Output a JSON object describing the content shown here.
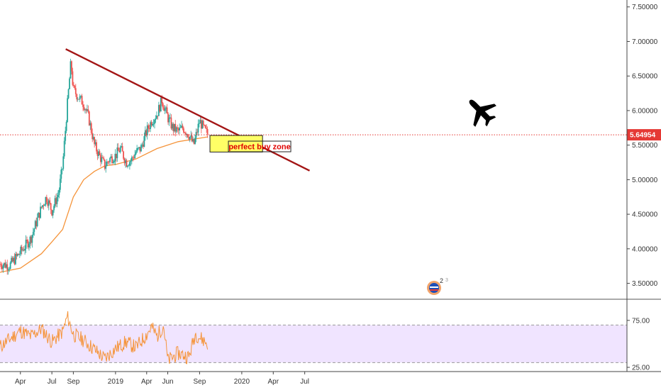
{
  "chart_data": [
    {
      "type": "candlestick",
      "price_axis": {
        "ticks": [
          "7.50000",
          "7.00000",
          "6.50000",
          "6.00000",
          "5.50000",
          "5.00000",
          "4.50000",
          "4.00000",
          "3.50000"
        ],
        "tick_values": [
          7.5,
          7.0,
          6.5,
          6.0,
          5.5,
          5.0,
          4.5,
          4.0,
          3.5
        ],
        "ylim": [
          3.27,
          7.6
        ]
      },
      "time_axis": {
        "labels": [
          "Apr",
          "Jul",
          "Sep",
          "2019",
          "Apr",
          "Jun",
          "Sep",
          "2020",
          "Apr",
          "Jul"
        ],
        "dates": [
          "2018-04",
          "2018-07",
          "2018-09",
          "2019-01",
          "2019-04",
          "2019-06",
          "2019-09",
          "2020-01",
          "2020-04",
          "2020-07"
        ]
      },
      "current_price": {
        "label": "5.64954",
        "value": 5.64954,
        "color": "#e53935"
      },
      "close_series": {
        "x": [
          "2018-02",
          "2018-03",
          "2018-04",
          "2018-05",
          "2018-06",
          "2018-06-15",
          "2018-07",
          "2018-07-20",
          "2018-08",
          "2018-08-15",
          "2018-08-25",
          "2018-09",
          "2018-09-15",
          "2018-10",
          "2018-10-15",
          "2018-11",
          "2018-11-15",
          "2018-12",
          "2018-12-15",
          "2019-01",
          "2019-01-15",
          "2019-02",
          "2019-02-15",
          "2019-03",
          "2019-03-15",
          "2019-04",
          "2019-04-15",
          "2019-05",
          "2019-05-15",
          "2019-06",
          "2019-06-15",
          "2019-07",
          "2019-07-15",
          "2019-08",
          "2019-08-15",
          "2019-09",
          "2019-09-15",
          "2019-09-25"
        ],
        "y": [
          3.78,
          3.76,
          3.95,
          4.15,
          4.6,
          4.75,
          4.55,
          4.8,
          5.2,
          6.1,
          6.7,
          6.3,
          6.2,
          6.1,
          5.9,
          5.5,
          5.35,
          5.2,
          5.3,
          5.35,
          5.45,
          5.25,
          5.28,
          5.4,
          5.45,
          5.7,
          5.85,
          5.95,
          6.15,
          5.9,
          5.75,
          5.7,
          5.75,
          5.65,
          5.5,
          5.85,
          5.72,
          5.65
        ]
      },
      "moving_average": {
        "color": "#f5943a",
        "x": [
          "2018-02",
          "2018-04",
          "2018-06",
          "2018-07",
          "2018-08",
          "2018-09",
          "2018-10",
          "2018-11",
          "2018-12",
          "2019-01",
          "2019-03",
          "2019-05",
          "2019-07",
          "2019-09-25"
        ],
        "y": [
          3.66,
          3.72,
          3.93,
          4.1,
          4.28,
          4.75,
          5.0,
          5.12,
          5.2,
          5.22,
          5.3,
          5.45,
          5.55,
          5.62
        ]
      },
      "trendline": {
        "color": "#a31515",
        "x": [
          "2018-08-10",
          "2020-07-15"
        ],
        "y": [
          6.89,
          5.13
        ]
      },
      "annotation": {
        "text": "perfect buy zone",
        "fill": "#ffff66",
        "price_range": [
          5.4,
          5.64
        ]
      },
      "icons": [
        "airplane-icon",
        "flag-badge-icon"
      ]
    },
    {
      "type": "line",
      "indicator": "RSI",
      "ticks": [
        "75.00",
        "25.00"
      ],
      "tick_values": [
        75,
        25
      ],
      "ylim": [
        22,
        96
      ],
      "band": {
        "upper": 70,
        "lower": 30,
        "fill": "#f0e4ff"
      },
      "color": "#f5943a",
      "x": [
        "2018-02",
        "2018-03",
        "2018-04",
        "2018-05",
        "2018-06",
        "2018-07",
        "2018-08",
        "2018-08-15",
        "2018-09",
        "2018-10",
        "2018-11",
        "2018-12",
        "2019-01",
        "2019-02",
        "2019-03",
        "2019-04",
        "2019-04-15",
        "2019-05",
        "2019-05-20",
        "2019-06",
        "2019-07",
        "2019-08",
        "2019-08-20",
        "2019-09",
        "2019-09-25"
      ],
      "y": [
        47,
        55,
        64,
        58,
        66,
        52,
        63,
        79,
        60,
        54,
        44,
        34,
        45,
        52,
        46,
        60,
        68,
        58,
        70,
        32,
        40,
        36,
        61,
        57,
        50
      ]
    }
  ]
}
